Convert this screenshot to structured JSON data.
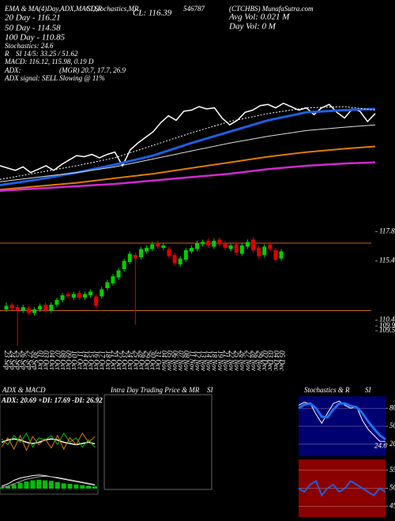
{
  "header": [
    "EMA & MA(4)Day,ADX,MACD,R",
    "SI,Stochastics,MR",
    "CL: 116.39",
    "546787",
    "(CTCHBS) MunafaSutra.com",
    "20 Day - 116.21",
    "Avg Vol: 0.021 M",
    "Day Vol: 0  M",
    "50 Day - 114.58",
    "100 Day - 110.85",
    "Stochastics: 24.6",
    "R",
    "SI 14/5: 33.25 / 51.62",
    "MACD: 116.12, 115.98, 0.19 D",
    "ADX:",
    "(MGR) 20.7, 17.7, 26.9",
    "ADX signal: SELL Slowing @ 11%"
  ],
  "chart_data": [
    {
      "type": "line",
      "ylim": [
        109.17,
        119.24
      ],
      "series": [
        {
          "color": "#ffffff",
          "width": 1.5,
          "values": [
            111.6,
            111.4,
            111.2,
            111.5,
            111.0,
            111.3,
            111.6,
            111.2,
            111.7,
            112.1,
            112.5,
            112.4,
            112.6,
            112.3,
            112.6,
            112.8,
            111.6,
            113.0,
            113.6,
            114.1,
            114.6,
            115.4,
            116.0,
            115.6,
            116.4,
            116.5,
            116.8,
            116.6,
            116.7,
            115.8,
            115.2,
            115.6,
            116.3,
            116.5,
            116.9,
            117.0,
            116.7,
            117.1,
            116.8,
            116.5,
            116.7,
            116.1,
            116.7,
            117.0,
            116.3,
            115.8,
            116.6,
            116.4,
            115.5,
            116.2
          ]
        },
        {
          "color": "#1e5fe0",
          "width": 3,
          "x": [
            0,
            5,
            10,
            15,
            20,
            25,
            30,
            35,
            40,
            45,
            49
          ],
          "values": [
            109.9,
            110.4,
            111.0,
            111.7,
            112.5,
            113.6,
            114.6,
            115.6,
            116.3,
            116.5,
            116.6
          ]
        },
        {
          "color": "#ffffff",
          "width": 1,
          "dash": true,
          "x": [
            0,
            5,
            10,
            15,
            20,
            25,
            30,
            35,
            40,
            45,
            49
          ],
          "values": [
            110.4,
            111.0,
            111.6,
            112.3,
            113.4,
            114.5,
            115.5,
            116.2,
            116.7,
            116.8,
            116.5
          ]
        },
        {
          "color": "#dddddd",
          "width": 1,
          "x": [
            0,
            5,
            10,
            15,
            20,
            25,
            30,
            35,
            40,
            45,
            49
          ],
          "values": [
            110.2,
            110.6,
            111.0,
            111.5,
            112.2,
            112.9,
            113.6,
            114.2,
            114.7,
            115.0,
            115.2
          ]
        },
        {
          "color": "#e07b00",
          "width": 2,
          "x": [
            0,
            5,
            10,
            15,
            20,
            25,
            30,
            35,
            40,
            45,
            49
          ],
          "values": [
            109.5,
            109.8,
            110.1,
            110.5,
            110.9,
            111.4,
            111.9,
            112.4,
            112.8,
            113.1,
            113.3
          ]
        },
        {
          "color": "#d02ad0",
          "width": 2.5,
          "x": [
            0,
            5,
            10,
            15,
            20,
            25,
            30,
            35,
            40,
            45,
            49
          ],
          "values": [
            109.4,
            109.6,
            109.8,
            110.0,
            110.3,
            110.6,
            110.9,
            111.3,
            111.6,
            111.8,
            111.9
          ]
        }
      ]
    },
    {
      "type": "candlestick",
      "ylim": [
        108.1,
        118.43
      ],
      "yticks": [
        117.86,
        115.4,
        110.4,
        109.9,
        109.5
      ],
      "up_color": "#00d000",
      "down_color": "#e00000",
      "levels": [
        116.9,
        111.2
      ],
      "level_color": "#c8651e",
      "categories": [
        "23 Sep",
        "24 Sep",
        "25 Sep",
        "26 Sep",
        "27 Sep",
        "30 Sep",
        "01 Oct",
        "03 Oct",
        "04 Oct",
        "07 Oct",
        "08 Oct",
        "09 Oct",
        "10 Oct",
        "11 Oct",
        "14 Oct",
        "15 Oct",
        "16 Oct",
        "17 Oct",
        "18 Oct",
        "21 Oct",
        "22 Oct",
        "23 Oct",
        "24 Oct",
        "25 Oct",
        "28 Oct",
        "29 Oct",
        "30 Oct",
        "31 Oct",
        "04 Nov",
        "05 Nov",
        "06 Nov",
        "07 Nov",
        "08 Nov",
        "11 Nov",
        "12 Nov",
        "13 Nov",
        "14 Nov",
        "18 Nov",
        "19 Nov",
        "21 Nov",
        "22 Nov",
        "25 Nov",
        "26 Nov",
        "27 Nov",
        "28 Nov",
        "29 Nov",
        "02 Dec",
        "03 Dec",
        "04 Dec",
        "05 Dec"
      ],
      "open": [
        111.3,
        111.7,
        111.5,
        111.2,
        111.4,
        111.0,
        111.3,
        111.7,
        111.2,
        111.7,
        112.1,
        112.6,
        112.3,
        112.7,
        112.3,
        112.5,
        112.4,
        112.4,
        113.1,
        113.5,
        114.0,
        114.7,
        115.3,
        115.9,
        115.7,
        116.2,
        116.4,
        116.9,
        116.5,
        116.4,
        115.9,
        115.1,
        115.5,
        116.2,
        116.4,
        116.8,
        117.1,
        116.6,
        117.2,
        116.9,
        116.4,
        116.8,
        116.0,
        116.6,
        117.2,
        116.5,
        115.9,
        116.8,
        116.3,
        115.6
      ],
      "high": [
        111.9,
        111.9,
        111.7,
        111.7,
        111.6,
        111.5,
        111.8,
        111.9,
        111.9,
        112.3,
        112.7,
        112.8,
        112.8,
        112.9,
        112.8,
        113.0,
        112.6,
        113.2,
        113.8,
        114.3,
        114.8,
        115.6,
        116.2,
        116.1,
        116.6,
        116.7,
        117.0,
        117.1,
        116.9,
        116.6,
        116.1,
        115.8,
        116.5,
        116.7,
        117.1,
        117.2,
        117.3,
        117.3,
        117.4,
        117.1,
        116.9,
        117.0,
        116.9,
        117.2,
        117.4,
        116.7,
        116.8,
        117.0,
        116.5,
        116.4
      ],
      "low": [
        111.1,
        111.2,
        108.2,
        111.0,
        110.8,
        110.8,
        111.1,
        111.0,
        111.0,
        111.5,
        111.9,
        112.2,
        112.1,
        112.1,
        112.1,
        112.3,
        111.4,
        112.2,
        112.9,
        113.3,
        113.8,
        114.5,
        115.1,
        110.0,
        115.5,
        116.0,
        116.2,
        116.4,
        116.3,
        115.6,
        115.0,
        114.9,
        115.3,
        116.0,
        116.2,
        116.6,
        116.5,
        116.4,
        116.6,
        116.3,
        116.2,
        115.9,
        115.8,
        116.4,
        116.1,
        115.6,
        115.7,
        116.2,
        115.3,
        115.4
      ],
      "close": [
        111.6,
        111.4,
        111.2,
        111.5,
        111.0,
        111.3,
        111.6,
        111.2,
        111.7,
        112.1,
        112.5,
        112.4,
        112.6,
        112.3,
        112.6,
        112.8,
        111.6,
        113.0,
        113.6,
        114.1,
        114.6,
        115.4,
        116.0,
        115.6,
        116.4,
        116.5,
        116.8,
        116.6,
        116.7,
        115.8,
        115.2,
        115.6,
        116.3,
        116.5,
        116.9,
        117.0,
        116.7,
        117.1,
        116.8,
        116.5,
        116.7,
        116.1,
        116.7,
        117.0,
        116.3,
        115.8,
        116.6,
        116.4,
        115.5,
        116.2
      ]
    },
    {
      "type": "line",
      "title": "ADX & MACD",
      "subtitle": "ADX: 20.69 +DI: 17.69 -DI: 26.92",
      "ylim": [
        0,
        50
      ],
      "series": [
        {
          "color": "#ffffff",
          "width": 1.5,
          "values": [
            22,
            24,
            25,
            24,
            22,
            21,
            22,
            24,
            25,
            24,
            22,
            21,
            20,
            21,
            22,
            20.69
          ]
        },
        {
          "color": "#00c000",
          "width": 1,
          "values": [
            25,
            20,
            28,
            22,
            30,
            18,
            26,
            24,
            28,
            20,
            30,
            22,
            26,
            18,
            24,
            17.69
          ]
        },
        {
          "color": "#e07b00",
          "width": 1,
          "values": [
            18,
            26,
            16,
            28,
            15,
            27,
            20,
            25,
            17,
            28,
            16,
            26,
            20,
            30,
            22,
            26.92
          ]
        }
      ]
    },
    {
      "type": "bar_line",
      "ylim": [
        -0.2,
        1.4
      ],
      "bar_color": "#00c000",
      "values": [
        0.1,
        0.2,
        0.35,
        0.5,
        0.6,
        0.7,
        0.75,
        0.7,
        0.65,
        0.55,
        0.45,
        0.4,
        0.35,
        0.3,
        0.25,
        0.19
      ],
      "series": [
        {
          "color": "#ffffff",
          "width": 1,
          "values": [
            0.2,
            0.4,
            0.7,
            0.9,
            1.0,
            1.1,
            1.15,
            1.1,
            1.0,
            0.9,
            0.8,
            0.7,
            0.6,
            0.5,
            0.4,
            0.3
          ]
        },
        {
          "color": "#aaaaaa",
          "width": 1,
          "values": [
            0.1,
            0.2,
            0.4,
            0.6,
            0.8,
            0.9,
            1.0,
            1.05,
            1.0,
            0.95,
            0.85,
            0.75,
            0.65,
            0.55,
            0.45,
            0.35
          ]
        }
      ]
    },
    {
      "type": "empty",
      "title": "Intra Day Trading Price & MR",
      "title_suffix": "SI"
    },
    {
      "type": "line",
      "title": "Stochastics & R",
      "title_suffix": "SI",
      "background": "#000070",
      "ylim": [
        0,
        100
      ],
      "yticks": [
        20,
        50,
        80
      ],
      "series": [
        {
          "color": "#ffffff",
          "width": 1,
          "values": [
            85,
            90,
            88,
            70,
            55,
            72,
            88,
            92,
            85,
            80,
            83,
            60,
            45,
            35,
            25,
            24.6
          ]
        },
        {
          "color": "#1e6ff0",
          "width": 3,
          "values": [
            80,
            86,
            88,
            80,
            66,
            65,
            78,
            88,
            88,
            84,
            82,
            72,
            58,
            46,
            35,
            28
          ]
        }
      ]
    },
    {
      "type": "line",
      "background": "#8b0000",
      "ylim": [
        42,
        58
      ],
      "yticks": [
        45,
        50,
        55
      ],
      "series": [
        {
          "color": "#1e5fe0",
          "width": 2,
          "values": [
            50,
            49,
            51,
            52,
            48,
            50,
            51,
            49,
            50,
            52,
            51,
            50,
            49,
            48,
            50,
            49
          ]
        }
      ]
    }
  ]
}
